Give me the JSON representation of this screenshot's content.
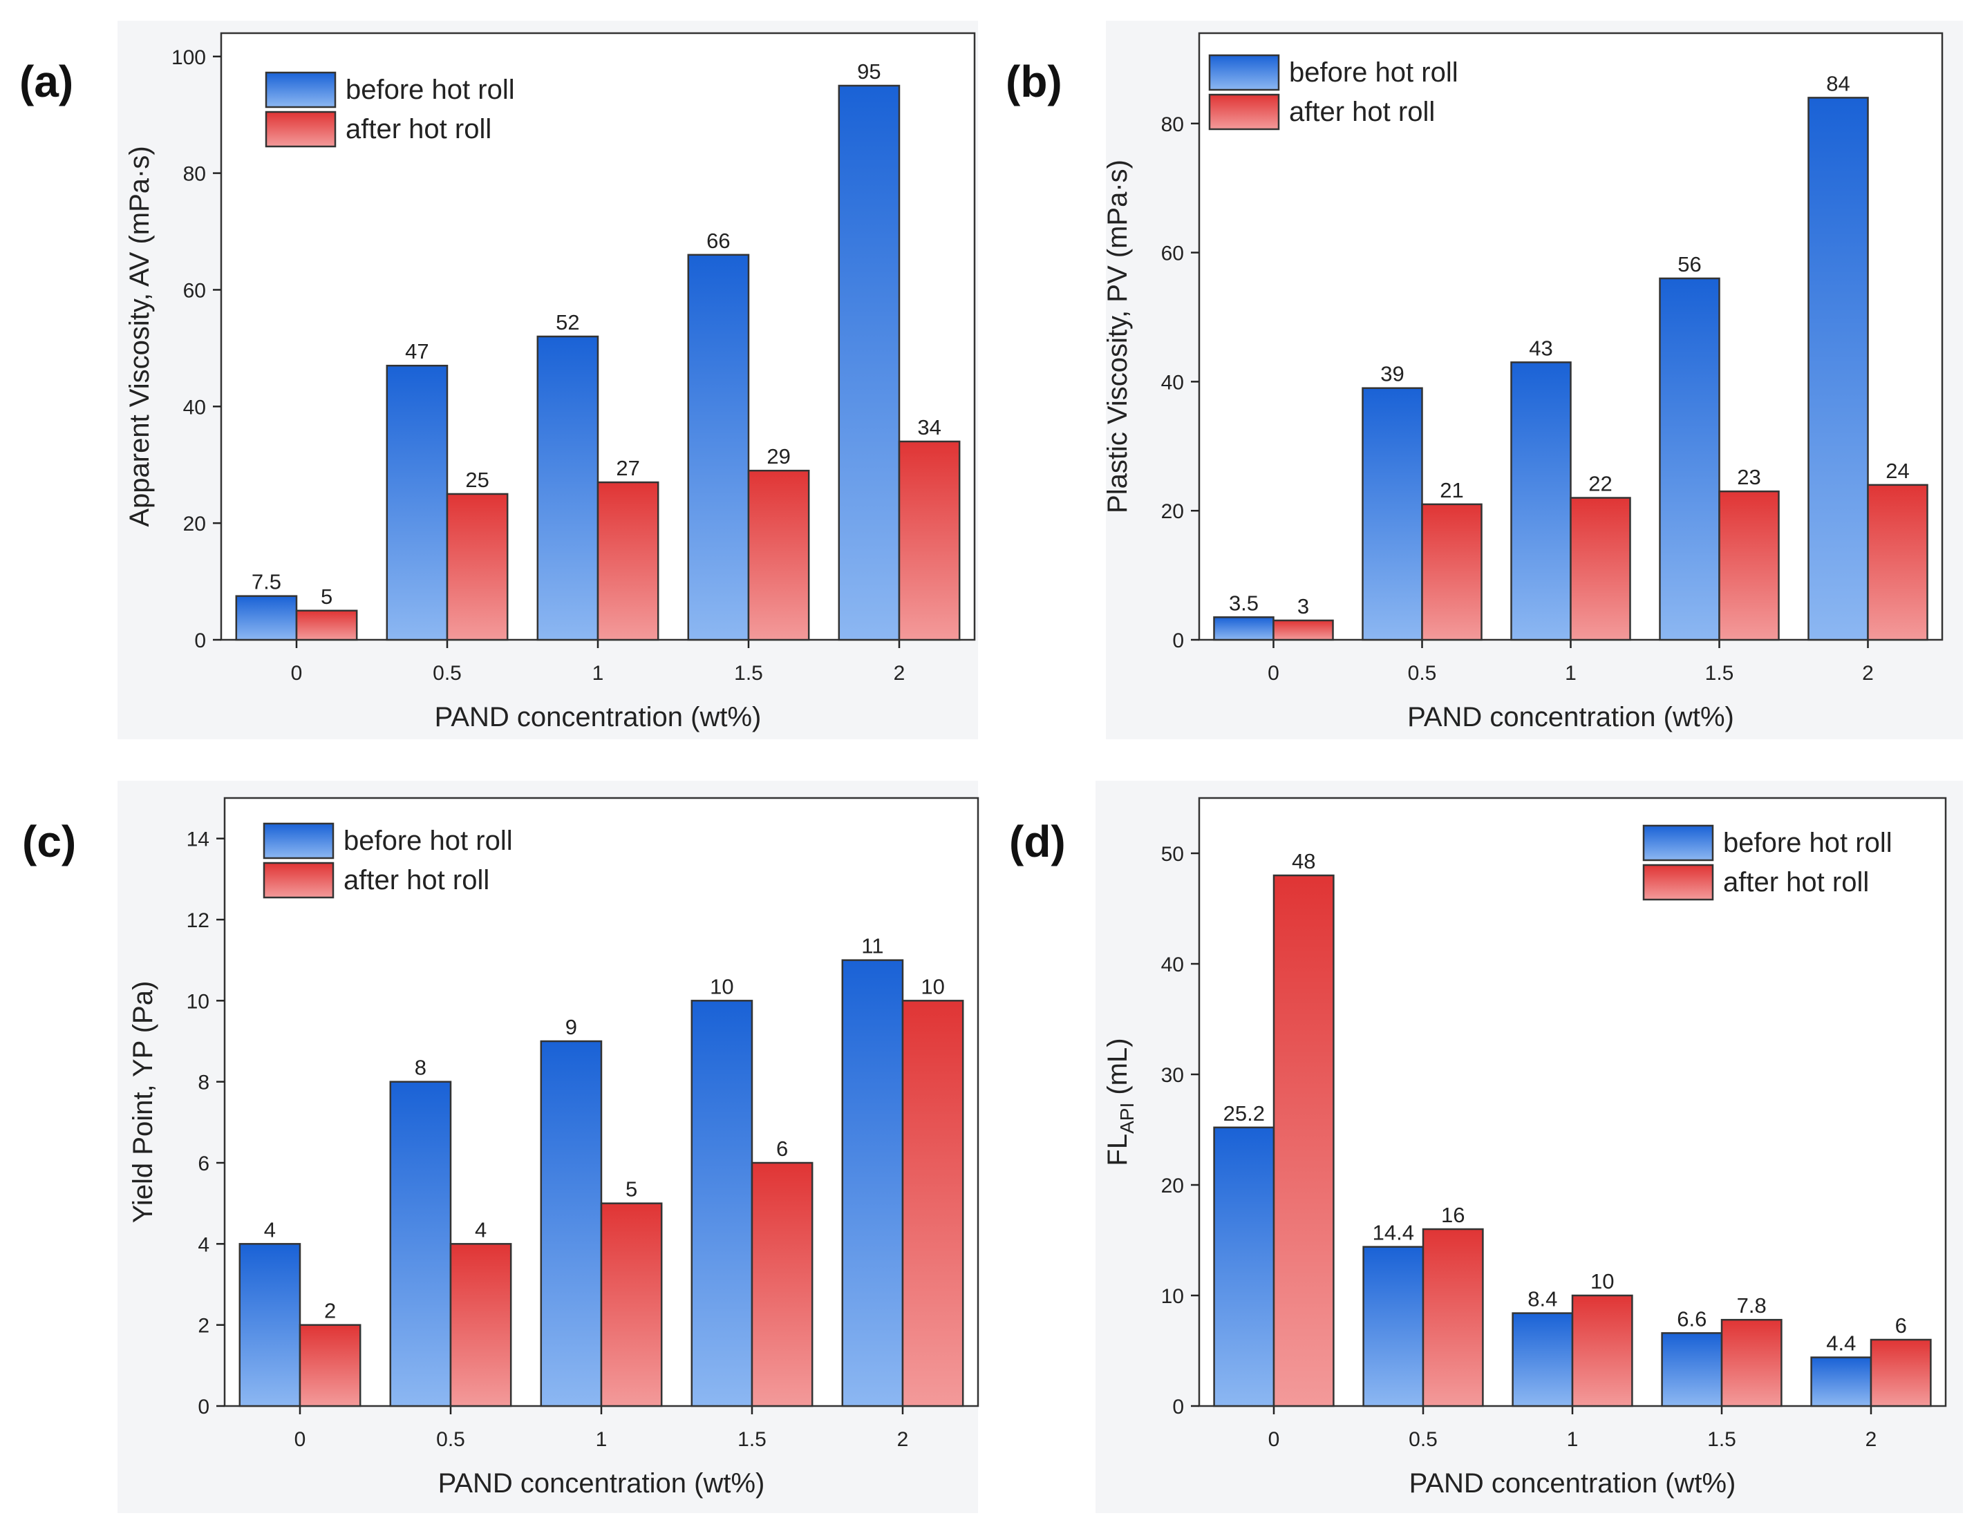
{
  "colors": {
    "before_top": "#1a62d6",
    "before_bottom": "#8cb7f2",
    "after_top": "#e03535",
    "after_bottom": "#f39a9a"
  },
  "chart_data": [
    {
      "id": "a",
      "panel_label": "(a)",
      "type": "bar",
      "categories": [
        "0",
        "0.5",
        "1",
        "1.5",
        "2"
      ],
      "series": [
        {
          "name": "before hot roll",
          "values": [
            7.5,
            47,
            52,
            66,
            95
          ],
          "labels": [
            "7.5",
            "47",
            "52",
            "66",
            "95"
          ]
        },
        {
          "name": "after hot roll",
          "values": [
            5,
            25,
            27,
            29,
            34
          ],
          "labels": [
            "5",
            "25",
            "27",
            "29",
            "34"
          ]
        }
      ],
      "xlabel": "PAND concentration (wt%)",
      "ylabel": "Apparent Viscosity, AV (mPa·s)",
      "ylim": [
        0,
        104
      ],
      "yticks": [
        0,
        20,
        40,
        60,
        80,
        100
      ],
      "legend_position": "top-left"
    },
    {
      "id": "b",
      "panel_label": "(b)",
      "type": "bar",
      "categories": [
        "0",
        "0.5",
        "1",
        "1.5",
        "2"
      ],
      "series": [
        {
          "name": "before hot roll",
          "values": [
            3.5,
            39,
            43,
            56,
            84
          ],
          "labels": [
            "3.5",
            "39",
            "43",
            "56",
            "84"
          ]
        },
        {
          "name": "after hot roll",
          "values": [
            3,
            21,
            22,
            23,
            24
          ],
          "labels": [
            "3",
            "21",
            "22",
            "23",
            "24"
          ]
        }
      ],
      "xlabel": "PAND concentration (wt%)",
      "ylabel": "Plastic Viscosity, PV (mPa·s)",
      "ylim": [
        0,
        94
      ],
      "yticks": [
        0,
        20,
        40,
        60,
        80
      ],
      "legend_position": "top-left"
    },
    {
      "id": "c",
      "panel_label": "(c)",
      "type": "bar",
      "categories": [
        "0",
        "0.5",
        "1",
        "1.5",
        "2"
      ],
      "series": [
        {
          "name": "before hot roll",
          "values": [
            4,
            8,
            9,
            10,
            11
          ],
          "labels": [
            "4",
            "8",
            "9",
            "10",
            "11"
          ]
        },
        {
          "name": "after hot roll",
          "values": [
            2,
            4,
            5,
            6,
            10
          ],
          "labels": [
            "2",
            "4",
            "5",
            "6",
            "10"
          ]
        }
      ],
      "xlabel": "PAND concentration (wt%)",
      "ylabel": "Yield Point, YP (Pa)",
      "ylim": [
        0,
        15
      ],
      "yticks": [
        0,
        2,
        4,
        6,
        8,
        10,
        12,
        14
      ],
      "legend_position": "top-left"
    },
    {
      "id": "d",
      "panel_label": "(d)",
      "type": "bar",
      "categories": [
        "0",
        "0.5",
        "1",
        "1.5",
        "2"
      ],
      "series": [
        {
          "name": "before hot roll",
          "values": [
            25.2,
            14.4,
            8.4,
            6.6,
            4.4
          ],
          "labels": [
            "25.2",
            "14.4",
            "8.4",
            "6.6",
            "4.4"
          ]
        },
        {
          "name": "after hot roll",
          "values": [
            48,
            16,
            10,
            7.8,
            6
          ],
          "labels": [
            "48",
            "16",
            "10",
            "7.8",
            "6"
          ]
        }
      ],
      "xlabel": "PAND concentration (wt%)",
      "ylabel_main": "FL",
      "ylabel_sub": "API",
      "ylabel_unit": " (mL)",
      "ylim": [
        0,
        55
      ],
      "yticks": [
        0,
        10,
        20,
        30,
        40,
        50
      ],
      "legend_position": "top-right"
    }
  ]
}
